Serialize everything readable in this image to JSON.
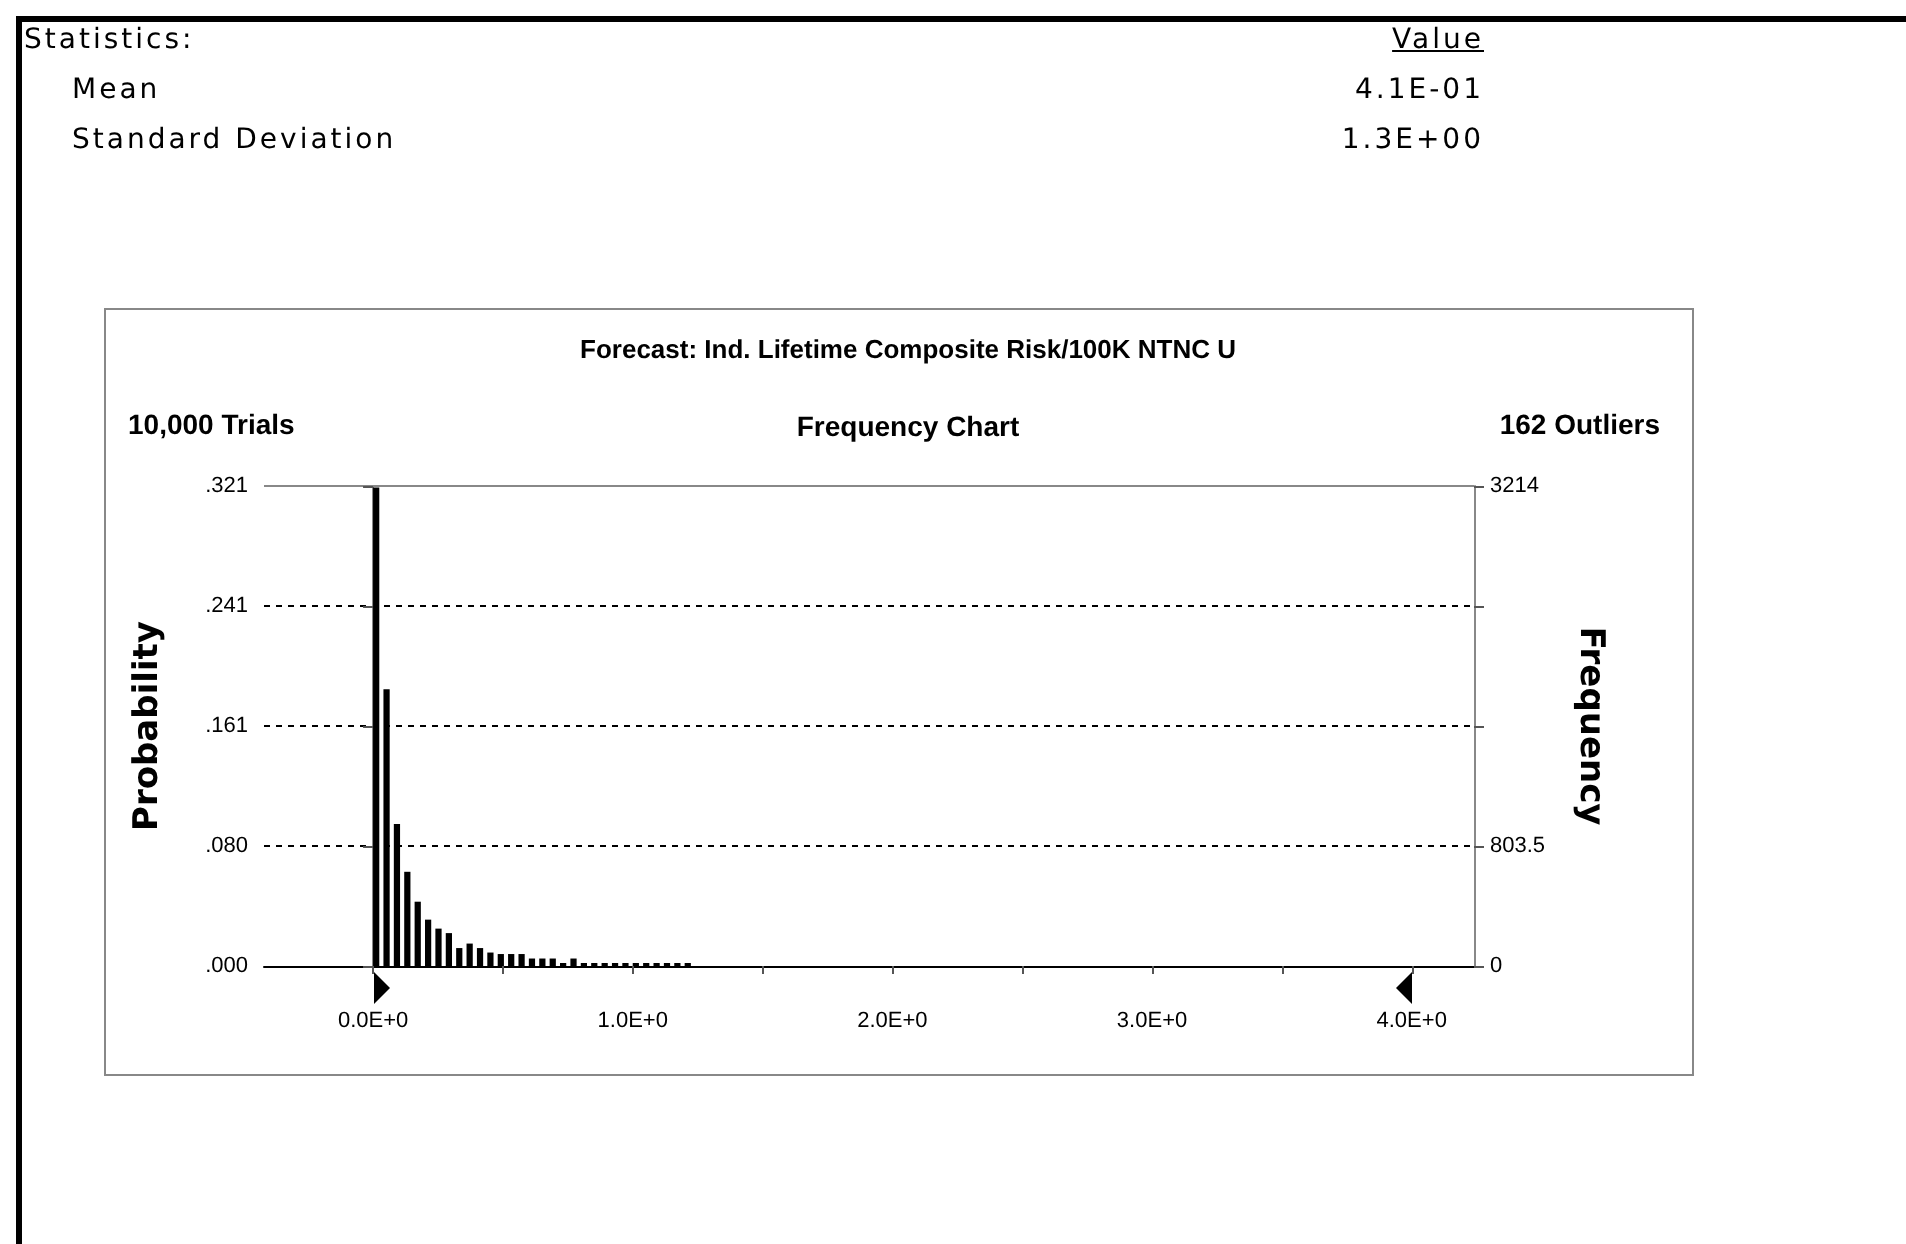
{
  "chart_data": {
    "type": "histogram",
    "title": "Forecast: Ind. Lifetime Composite Risk/100K NTNC U",
    "subtitle": "Frequency Chart",
    "ylabel": "Probability",
    "y2label": "Frequency",
    "annotations": [
      "Statistics:",
      "Value",
      "Mean",
      "4.1E-01",
      "Standard Deviation",
      "1.3E+00",
      "10,000 Trials",
      "162 Outliers"
    ],
    "bins": [
      0,
      0.04,
      0.08,
      0.12,
      0.16,
      0.2,
      0.24,
      0.28,
      0.32,
      0.36,
      0.4,
      0.44,
      0.48,
      0.52,
      0.56,
      0.6,
      0.64,
      0.68,
      0.72,
      0.76,
      0.8,
      0.84,
      0.88,
      0.92,
      0.96,
      1.0,
      1.04,
      1.08,
      1.12,
      1.16,
      1.2,
      1.24
    ],
    "values": [
      0.32,
      0.185,
      0.095,
      0.063,
      0.043,
      0.031,
      0.025,
      0.022,
      0.012,
      0.015,
      0.012,
      0.009,
      0.008,
      0.008,
      0.008,
      0.005,
      0.005,
      0.005,
      0.002,
      0.005,
      0.002,
      0.002,
      0.002,
      0.002,
      0.002,
      0.002,
      0.002,
      0.002,
      0.002,
      0.002,
      0.002
    ],
    "color": "#000000",
    "xlim": [
      -0.42,
      4.24
    ],
    "xticks": [
      {
        "value": 0,
        "label": "0.0E+0"
      },
      {
        "value": 0.5,
        "label": null
      },
      {
        "value": 1,
        "label": "1.0E+0"
      },
      {
        "value": 1.5,
        "label": null
      },
      {
        "value": 2,
        "label": "2.0E+0"
      },
      {
        "value": 2.5,
        "label": null
      },
      {
        "value": 3,
        "label": "3.0E+0"
      },
      {
        "value": 3.5,
        "label": null
      },
      {
        "value": 4,
        "label": "4.0E+0"
      }
    ],
    "ylim": [
      0,
      0.321
    ],
    "yticks": [
      {
        "value": 0,
        "label": ".000"
      },
      {
        "value": 0.08025,
        "label": ".080"
      },
      {
        "value": 0.1605,
        "label": ".161"
      },
      {
        "value": 0.24075,
        "label": ".241"
      },
      {
        "value": 0.321,
        "label": ".321"
      }
    ],
    "y2lim": [
      0,
      3214
    ],
    "y2ticks": [
      0,
      803.5,
      {
        "value": 1607,
        "label": null
      },
      {
        "value": 2410.5,
        "label": null
      },
      3214
    ],
    "grid": "y"
  }
}
